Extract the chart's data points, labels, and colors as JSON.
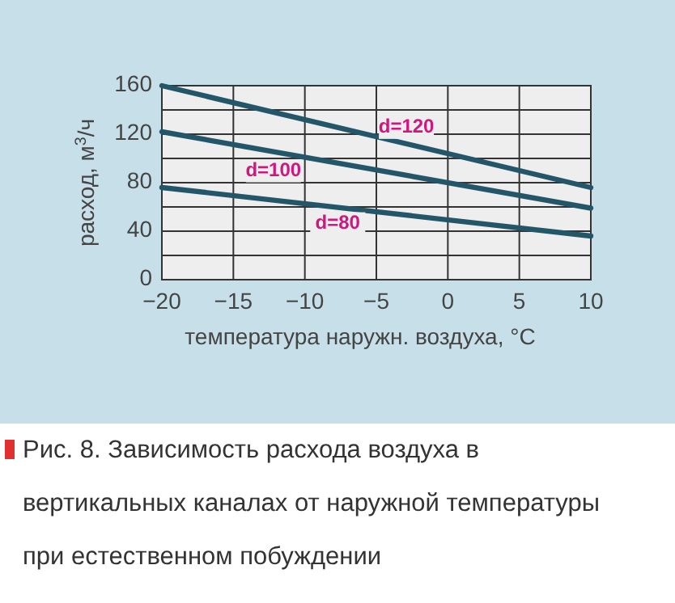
{
  "chart_data": {
    "type": "line",
    "xlabel": "температура наружн. воздуха, °C",
    "ylabel": "расход, м$^{3}$/ч",
    "x": [
      -20,
      10
    ],
    "series": [
      {
        "name": "d=80",
        "color": "#24566a",
        "values": [
          76,
          36
        ]
      },
      {
        "name": "d=100",
        "color": "#24566a",
        "values": [
          122,
          59
        ]
      },
      {
        "name": "d=120",
        "color": "#24566a",
        "values": [
          160,
          76
        ]
      }
    ],
    "xlim": [
      -20,
      10
    ],
    "xticks": [
      {
        "value": -20,
        "label": "−20"
      },
      {
        "value": -15,
        "label": "−15"
      },
      {
        "value": -10,
        "label": "−10"
      },
      {
        "value": -5,
        "label": "−5"
      },
      0,
      5,
      10
    ],
    "ylim": [
      0,
      160
    ],
    "yticks": [
      0,
      {
        "value": 20,
        "label": null
      },
      40,
      {
        "value": 60,
        "label": null
      },
      80,
      {
        "value": 100,
        "label": null
      },
      120,
      {
        "value": 140,
        "label": null
      },
      160
    ],
    "grid": true,
    "marker": "none",
    "line_style": "solid",
    "annotations": [
      "Рис. 8. Зависимость расхода воздуха в вертикальных каналах от наружной температуры при естественном побуждении"
    ]
  }
}
